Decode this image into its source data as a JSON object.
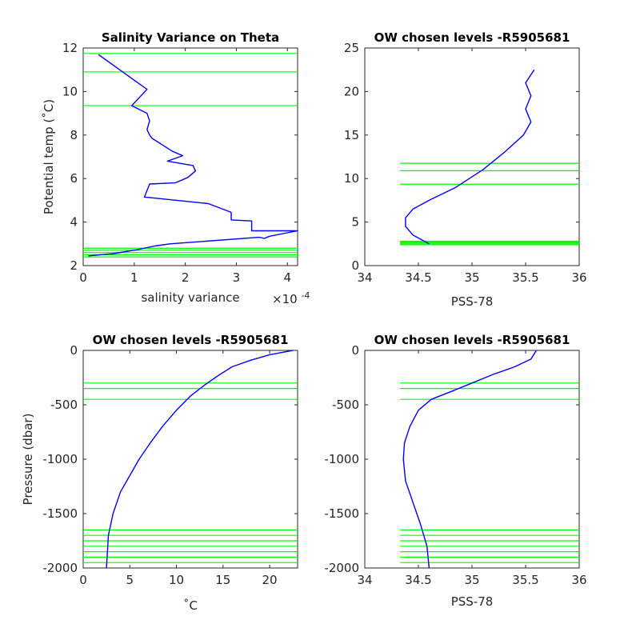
{
  "figure": {
    "background": "#ffffff",
    "line_color": "#0000ff",
    "level_color": "#00ff00"
  },
  "chart_data": [
    {
      "id": "p1",
      "type": "line",
      "title": "Salinity Variance on Theta",
      "xlabel": "salinity variance",
      "ylabel": "Potential temp (˚C)",
      "x_exponent": "×10",
      "x_exponent_power": "-4",
      "xlim": [
        0,
        4.2
      ],
      "ylim": [
        2,
        12
      ],
      "xticks": [
        0,
        1,
        2,
        3,
        4
      ],
      "yticks": [
        2,
        4,
        6,
        8,
        10,
        12
      ],
      "xtick_labels": [
        "0",
        "1",
        "2",
        "3",
        "4"
      ],
      "ytick_labels": [
        "2",
        "4",
        "6",
        "8",
        "10",
        "12"
      ],
      "series": [
        {
          "x": [
            0.3,
            1.25,
            0.95,
            1.25,
            1.3,
            1.25,
            1.3,
            1.35,
            1.75,
            1.95,
            1.65,
            2.15,
            2.2,
            2.05,
            1.8,
            1.3,
            1.2,
            2.45,
            2.9,
            2.9,
            3.3,
            3.3,
            3.4,
            4.2,
            3.65,
            3.55,
            3.45,
            1.7,
            1.4,
            1.1,
            0.6,
            0.1
          ],
          "y": [
            11.7,
            10.1,
            9.35,
            9.0,
            8.65,
            8.25,
            8.0,
            7.85,
            7.25,
            7.05,
            6.8,
            6.6,
            6.35,
            6.05,
            5.8,
            5.75,
            5.15,
            4.85,
            4.45,
            4.1,
            4.05,
            3.6,
            3.6,
            3.6,
            3.35,
            3.25,
            3.3,
            3.0,
            2.9,
            2.75,
            2.55,
            2.45
          ]
        }
      ],
      "levels": [
        11.75,
        10.9,
        9.35,
        2.8,
        2.7,
        2.6,
        2.5,
        2.4
      ],
      "level_xlim": [
        0,
        4.2
      ]
    },
    {
      "id": "p2",
      "type": "line",
      "title": "OW chosen levels -R5905681",
      "xlabel": "PSS-78",
      "ylabel": "",
      "xlim": [
        34,
        36
      ],
      "ylim": [
        0,
        25
      ],
      "xticks": [
        34,
        34.5,
        35,
        35.5,
        36
      ],
      "yticks": [
        0,
        5,
        10,
        15,
        20,
        25
      ],
      "xtick_labels": [
        "34",
        "34.5",
        "35",
        "35.5",
        "36"
      ],
      "ytick_labels": [
        "0",
        "5",
        "10",
        "15",
        "20",
        "25"
      ],
      "series": [
        {
          "x": [
            34.6,
            34.45,
            34.38,
            34.38,
            34.45,
            34.6,
            34.85,
            35.1,
            35.3,
            35.48,
            35.55,
            35.5,
            35.55,
            35.5,
            35.58
          ],
          "y": [
            2.5,
            3.5,
            4.5,
            5.5,
            6.5,
            7.5,
            9.0,
            11.0,
            13.0,
            15.0,
            16.5,
            18.0,
            19.5,
            21.0,
            22.5
          ]
        }
      ],
      "levels": [
        11.75,
        10.9,
        9.35,
        2.8,
        2.7,
        2.6,
        2.5,
        2.4
      ],
      "level_xlim": [
        34.33,
        36
      ]
    },
    {
      "id": "p3",
      "type": "line",
      "title": "OW chosen levels -R5905681",
      "xlabel": "˚C",
      "ylabel": "Pressure (dbar)",
      "xlim": [
        0,
        23
      ],
      "ylim": [
        -2000,
        0
      ],
      "xticks": [
        0,
        5,
        10,
        15,
        20
      ],
      "yticks": [
        -2000,
        -1500,
        -1000,
        -500,
        0
      ],
      "xtick_labels": [
        "0",
        "5",
        "10",
        "15",
        "20"
      ],
      "ytick_labels": [
        "-2000",
        "-1500",
        "-1000",
        "-500",
        "0"
      ],
      "series": [
        {
          "x": [
            2.5,
            2.7,
            3.2,
            4.0,
            5.0,
            6.0,
            7.2,
            8.5,
            10.0,
            11.5,
            13.0,
            14.5,
            16.0,
            18.0,
            20.0,
            22.5
          ],
          "y": [
            -2000,
            -1700,
            -1500,
            -1300,
            -1150,
            -1000,
            -850,
            -700,
            -550,
            -420,
            -320,
            -230,
            -150,
            -90,
            -40,
            0
          ]
        }
      ],
      "levels": [
        -300,
        -350,
        -450,
        -1650,
        -1700,
        -1750,
        -1800,
        -1850,
        -1900,
        -1950
      ],
      "level_xlim": [
        0,
        23
      ]
    },
    {
      "id": "p4",
      "type": "line",
      "title": "OW chosen levels -R5905681",
      "xlabel": "PSS-78",
      "ylabel": "",
      "xlim": [
        34,
        36
      ],
      "ylim": [
        -2000,
        0
      ],
      "xticks": [
        34,
        34.5,
        35,
        35.5,
        36
      ],
      "yticks": [
        -2000,
        -1500,
        -1000,
        -500,
        0
      ],
      "xtick_labels": [
        "34",
        "34.5",
        "35",
        "35.5",
        "36"
      ],
      "ytick_labels": [
        "-2000",
        "-1500",
        "-1000",
        "-500",
        "0"
      ],
      "series": [
        {
          "x": [
            34.6,
            34.58,
            34.52,
            34.45,
            34.38,
            34.36,
            34.37,
            34.42,
            34.5,
            34.62,
            34.8,
            35.0,
            35.2,
            35.4,
            35.55,
            35.6
          ],
          "y": [
            -2000,
            -1800,
            -1600,
            -1400,
            -1200,
            -1000,
            -850,
            -700,
            -550,
            -450,
            -380,
            -300,
            -220,
            -150,
            -80,
            0
          ]
        }
      ],
      "levels": [
        -300,
        -350,
        -450,
        -1650,
        -1700,
        -1750,
        -1800,
        -1850,
        -1900,
        -1950
      ],
      "level_xlim": [
        34.33,
        36
      ]
    }
  ]
}
